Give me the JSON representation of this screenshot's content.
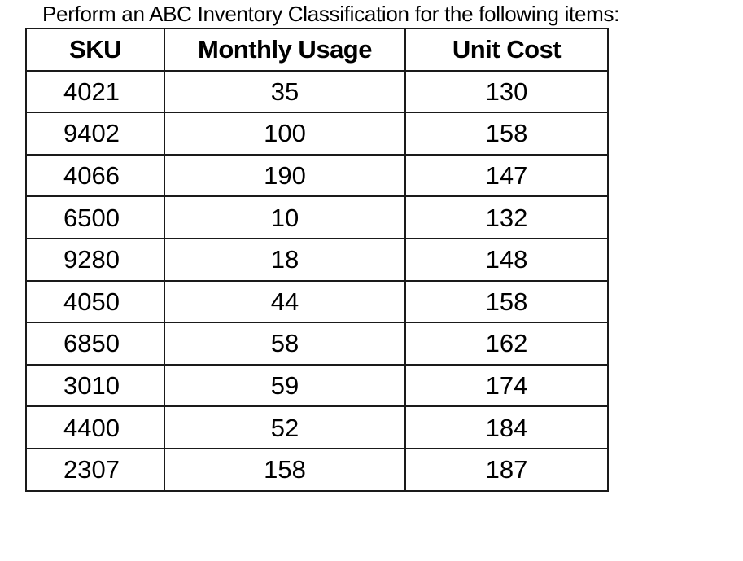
{
  "title": "Perform an ABC Inventory Classification for the following items:",
  "table": {
    "headers": [
      "SKU",
      "Monthly Usage",
      "Unit Cost"
    ],
    "rows": [
      [
        "4021",
        "35",
        "130"
      ],
      [
        "9402",
        "100",
        "158"
      ],
      [
        "4066",
        "190",
        "147"
      ],
      [
        "6500",
        "10",
        "132"
      ],
      [
        "9280",
        "18",
        "148"
      ],
      [
        "4050",
        "44",
        "158"
      ],
      [
        "6850",
        "58",
        "162"
      ],
      [
        "3010",
        "59",
        "174"
      ],
      [
        "4400",
        "52",
        "184"
      ],
      [
        "2307",
        "158",
        "187"
      ]
    ]
  }
}
